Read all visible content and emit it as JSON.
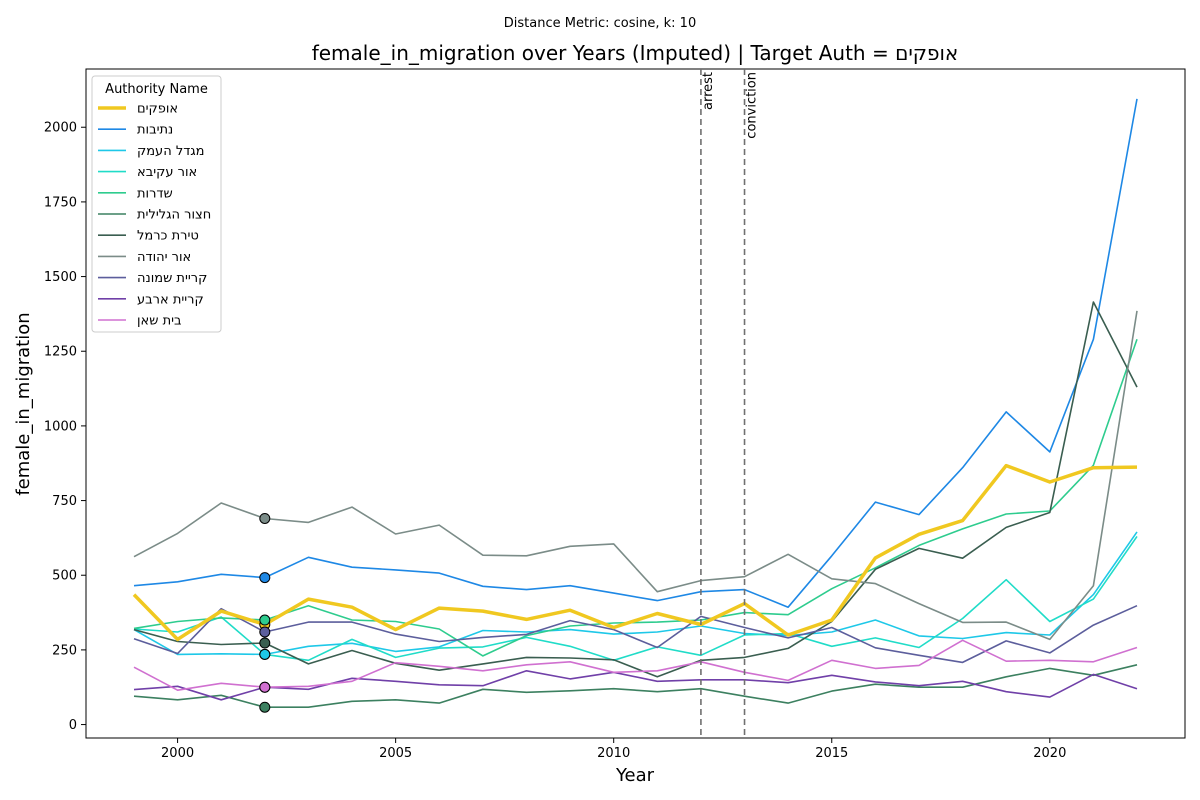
{
  "chart_data": {
    "type": "line",
    "suptitle": "Distance Metric: cosine, k: 10",
    "title": "female_in_migration over Years (Imputed) | Target Auth = אופקים",
    "xlabel": "Year",
    "ylabel": "female_in_migration",
    "xlim": [
      1997.9,
      2023.1
    ],
    "ylim": [
      -45,
      2195
    ],
    "xticks": [
      2000,
      2005,
      2010,
      2015,
      2020
    ],
    "yticks": [
      0,
      250,
      500,
      750,
      1000,
      1250,
      1500,
      1750,
      2000
    ],
    "grid": false,
    "legend": {
      "title": "Authority Name",
      "placement": "top-left"
    },
    "x": [
      1999,
      2000,
      2001,
      2002,
      2003,
      2004,
      2005,
      2006,
      2007,
      2008,
      2009,
      2010,
      2011,
      2012,
      2013,
      2014,
      2015,
      2016,
      2017,
      2018,
      2019,
      2020,
      2021,
      2022
    ],
    "series": [
      {
        "name": "אופקים",
        "color": "#f0c820",
        "target": true,
        "values": [
          435,
          285,
          380,
          335,
          420,
          393,
          318,
          390,
          380,
          352,
          383,
          325,
          372,
          335,
          405,
          300,
          350,
          558,
          637,
          683,
          867,
          812,
          860,
          862
        ]
      },
      {
        "name": "נתיבות",
        "color": "#1e88e5",
        "values": [
          465,
          478,
          503,
          492,
          560,
          527,
          518,
          507,
          463,
          452,
          465,
          440,
          415,
          445,
          452,
          393,
          565,
          745,
          703,
          860,
          1047,
          913,
          1290,
          2095
        ]
      },
      {
        "name": "מגדל העמק",
        "color": "#1ec8e8",
        "values": [
          318,
          235,
          237,
          235,
          262,
          272,
          245,
          260,
          315,
          310,
          318,
          303,
          310,
          330,
          305,
          298,
          310,
          350,
          297,
          288,
          308,
          300,
          435,
          645
        ]
      },
      {
        "name": "אור עקיבא",
        "color": "#20dcc8",
        "values": [
          320,
          310,
          360,
          235,
          215,
          285,
          225,
          256,
          260,
          292,
          262,
          215,
          260,
          232,
          300,
          305,
          262,
          290,
          258,
          355,
          485,
          345,
          420,
          630
        ]
      },
      {
        "name": "שדרות",
        "color": "#2ecc8e",
        "values": [
          322,
          345,
          357,
          350,
          398,
          350,
          345,
          320,
          230,
          298,
          330,
          340,
          343,
          350,
          375,
          368,
          455,
          525,
          600,
          655,
          705,
          715,
          868,
          1290
        ]
      },
      {
        "name": "חצור הגלילית",
        "color": "#3c8060",
        "values": [
          95,
          83,
          98,
          58,
          58,
          78,
          83,
          72,
          118,
          108,
          113,
          120,
          110,
          120,
          95,
          72,
          112,
          135,
          125,
          125,
          160,
          188,
          165,
          200
        ]
      },
      {
        "name": "טירת כרמל",
        "color": "#3a5e50",
        "values": [
          318,
          278,
          268,
          273,
          203,
          248,
          205,
          182,
          203,
          225,
          223,
          217,
          160,
          215,
          225,
          255,
          345,
          520,
          590,
          557,
          660,
          710,
          1415,
          1130
        ]
      },
      {
        "name": "אור יהודה",
        "color": "#7b8c88",
        "values": [
          562,
          640,
          742,
          690,
          677,
          728,
          638,
          668,
          567,
          565,
          597,
          605,
          445,
          482,
          495,
          570,
          488,
          472,
          405,
          342,
          343,
          285,
          465,
          1385
        ]
      },
      {
        "name": "קריית שמונה",
        "color": "#5c5e9c",
        "values": [
          287,
          238,
          388,
          310,
          343,
          343,
          303,
          278,
          292,
          302,
          348,
          318,
          258,
          362,
          325,
          290,
          325,
          257,
          232,
          208,
          280,
          240,
          333,
          398
        ]
      },
      {
        "name": "קריית ארבע",
        "color": "#7040a8",
        "values": [
          117,
          128,
          83,
          125,
          118,
          155,
          145,
          133,
          130,
          180,
          153,
          175,
          145,
          150,
          150,
          140,
          165,
          143,
          130,
          145,
          110,
          92,
          168,
          120
        ]
      },
      {
        "name": "בית שאן",
        "color": "#d070d0",
        "values": [
          192,
          115,
          138,
          125,
          128,
          145,
          207,
          195,
          180,
          200,
          210,
          175,
          180,
          210,
          175,
          148,
          215,
          188,
          198,
          282,
          212,
          215,
          210,
          258
        ]
      }
    ],
    "markers": {
      "x": 2002,
      "order": [
        7,
        1,
        3,
        0,
        4,
        8,
        9,
        6,
        2,
        10,
        5
      ]
    },
    "annotations": [
      {
        "x": 2012,
        "label": "arrest"
      },
      {
        "x": 2013,
        "label": "conviction"
      }
    ]
  }
}
